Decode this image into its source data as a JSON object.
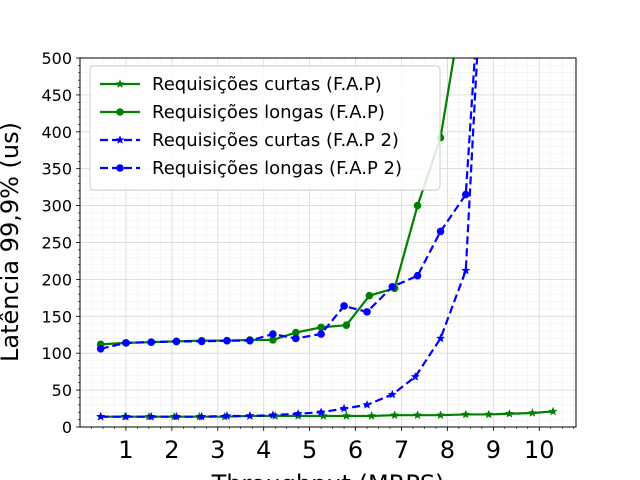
{
  "chart_data": {
    "type": "line",
    "xlabel": "Throughput (MRPS)",
    "ylabel": "Latência 99,9% (us)",
    "xlim": [
      0.0,
      10.8
    ],
    "ylim": [
      0,
      500
    ],
    "xticks": [
      1,
      2,
      3,
      4,
      5,
      6,
      7,
      8,
      9,
      10
    ],
    "yticks": [
      0,
      50,
      100,
      150,
      200,
      250,
      300,
      350,
      400,
      450,
      500
    ],
    "grid": true,
    "legend_position": "top-left",
    "series": [
      {
        "name": "Requisições curtas (F.A.P)",
        "color": "#008000",
        "line_style": "solid",
        "marker": "star",
        "x": [
          0.45,
          0.98,
          1.5,
          2.05,
          2.6,
          3.15,
          3.7,
          4.25,
          4.75,
          5.3,
          5.8,
          6.35,
          6.85,
          7.35,
          7.85,
          8.4,
          8.9,
          9.35,
          9.85,
          10.3
        ],
        "y": [
          14,
          14,
          14,
          14,
          14,
          14,
          15,
          15,
          15,
          15,
          15,
          15,
          16,
          16,
          16,
          17,
          17,
          18,
          19,
          21
        ]
      },
      {
        "name": "Requisições longas (F.A.P)",
        "color": "#008000",
        "line_style": "solid",
        "marker": "circle",
        "x": [
          0.45,
          1.0,
          1.55,
          2.1,
          2.65,
          3.2,
          3.7,
          4.2,
          4.7,
          5.25,
          5.8,
          6.3,
          6.85,
          7.35,
          7.85,
          8.15
        ],
        "y": [
          112,
          114,
          115,
          116,
          117,
          117,
          118,
          118,
          128,
          135,
          138,
          178,
          188,
          300,
          392,
          505
        ]
      },
      {
        "name": "Requisições curtas (F.A.P 2)",
        "color": "#0000ff",
        "line_style": "dashed",
        "marker": "star",
        "x": [
          0.45,
          1.0,
          1.55,
          2.1,
          2.65,
          3.2,
          3.7,
          4.2,
          4.75,
          5.25,
          5.75,
          6.25,
          6.8,
          7.3,
          7.85,
          8.4,
          8.65
        ],
        "y": [
          14,
          14,
          14,
          14,
          14,
          15,
          15,
          16,
          18,
          20,
          25,
          30,
          44,
          68,
          120,
          212,
          505
        ]
      },
      {
        "name": "Requisições longas (F.A.P 2)",
        "color": "#0000ff",
        "line_style": "dashed",
        "marker": "circle",
        "x": [
          0.45,
          1.0,
          1.55,
          2.1,
          2.65,
          3.2,
          3.7,
          4.2,
          4.7,
          5.25,
          5.75,
          6.25,
          6.8,
          7.35,
          7.85,
          8.4,
          8.6
        ],
        "y": [
          106,
          114,
          115,
          116,
          116,
          117,
          117,
          126,
          120,
          126,
          164,
          156,
          190,
          205,
          265,
          315,
          505
        ]
      }
    ]
  }
}
